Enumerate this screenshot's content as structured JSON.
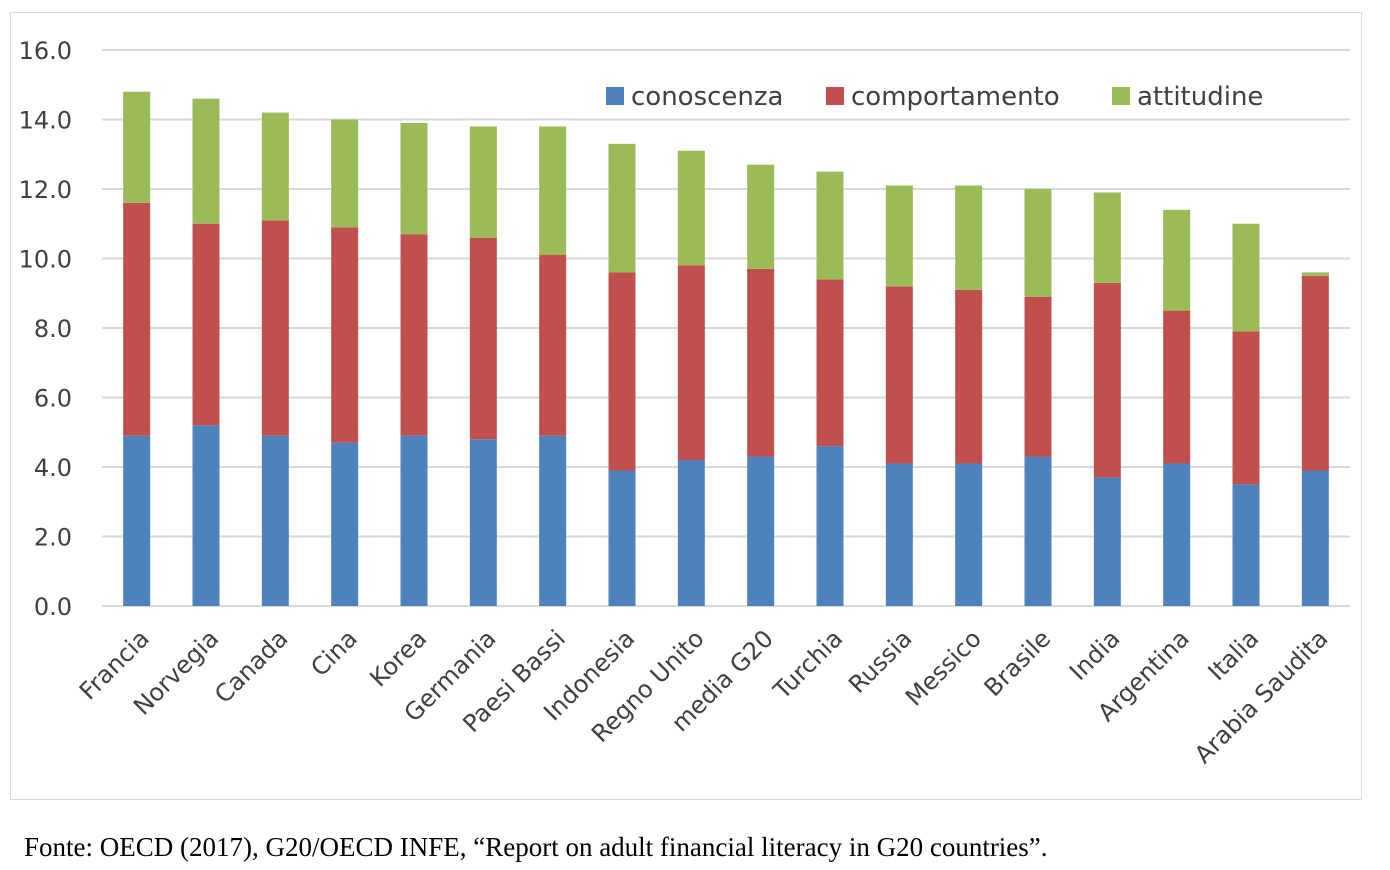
{
  "chart_data": {
    "type": "bar",
    "stacked": true,
    "categories": [
      "Francia",
      "Norvegia",
      "Canada",
      "Cina",
      "Korea",
      "Germania",
      "Paesi Bassi",
      "Indonesia",
      "Regno Unito",
      "media G20",
      "Turchia",
      "Russia",
      "Messico",
      "Brasile",
      "India",
      "Argentina",
      "Italia",
      "Arabia Saudita"
    ],
    "series": [
      {
        "name": "conoscenza",
        "color": "#4f81bd",
        "values": [
          4.9,
          5.2,
          4.9,
          4.7,
          4.9,
          4.8,
          4.9,
          3.9,
          4.2,
          4.3,
          4.6,
          4.1,
          4.1,
          4.3,
          3.7,
          4.1,
          3.5,
          3.9
        ]
      },
      {
        "name": "comportamento",
        "color": "#c0504d",
        "values": [
          6.7,
          5.8,
          6.2,
          6.2,
          5.8,
          5.8,
          5.2,
          5.7,
          5.6,
          5.4,
          4.8,
          5.1,
          5.0,
          4.6,
          5.6,
          4.4,
          4.4,
          5.6
        ]
      },
      {
        "name": "attitudine",
        "color": "#9bbb59",
        "values": [
          3.2,
          3.6,
          3.1,
          3.1,
          3.2,
          3.2,
          3.7,
          3.7,
          3.3,
          3.0,
          3.1,
          2.9,
          3.0,
          3.1,
          2.6,
          2.9,
          3.1,
          0.1
        ]
      }
    ],
    "yticks": [
      "0.0",
      "2.0",
      "4.0",
      "6.0",
      "8.0",
      "10.0",
      "12.0",
      "14.0",
      "16.0"
    ],
    "ylim": [
      0,
      16
    ],
    "grid": true,
    "legend_position": "top-right",
    "title": "",
    "xlabel": "",
    "ylabel": ""
  },
  "caption": "Fonte: OECD (2017), G20/OECD INFE, “Report on adult financial literacy in G20 countries”."
}
